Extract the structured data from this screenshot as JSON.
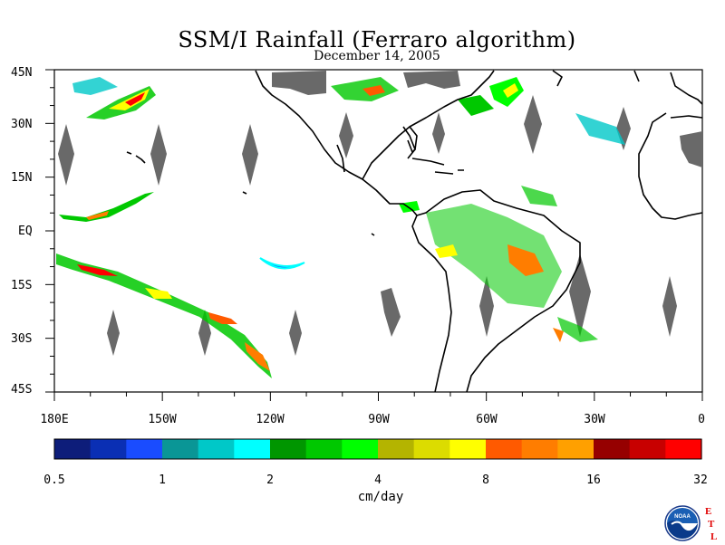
{
  "title": "SSM/I Rainfall (Ferraro algorithm)",
  "subtitle": "December 14, 2005",
  "map": {
    "lon_ticks": [
      "180E",
      "150W",
      "120W",
      "90W",
      "60W",
      "30W",
      "0"
    ],
    "lat_ticks": [
      "45N",
      "30N",
      "15N",
      "EQ",
      "15S",
      "30S",
      "45S"
    ],
    "land_outline_color": "#000000",
    "missing_data_color": "#696969"
  },
  "colorbar": {
    "units": "cm/day",
    "tick_labels": [
      "0.5",
      "1",
      "2",
      "4",
      "8",
      "16",
      "32"
    ],
    "colors": [
      "#0d1d7a",
      "#0a2fb4",
      "#1a4cff",
      "#0a9696",
      "#00c8c8",
      "#00ffff",
      "#009600",
      "#00c800",
      "#00ff00",
      "#b4b400",
      "#dcdc00",
      "#ffff00",
      "#ff5a00",
      "#ff7d00",
      "#ffa000",
      "#960000",
      "#c80000",
      "#ff0000"
    ]
  },
  "logo": {
    "name": "NOAA",
    "lab_letters": [
      "E",
      "T",
      "L"
    ]
  }
}
